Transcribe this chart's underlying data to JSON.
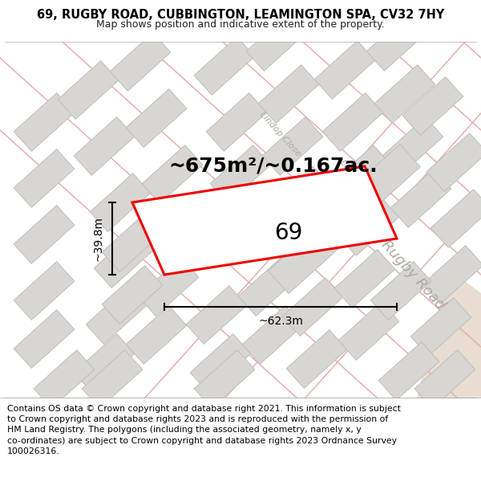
{
  "title": "69, RUGBY ROAD, CUBBINGTON, LEAMINGTON SPA, CV32 7HY",
  "subtitle": "Map shows position and indicative extent of the property.",
  "footer": "Contains OS data © Crown copyright and database right 2021. This information is subject\nto Crown copyright and database rights 2023 and is reproduced with the permission of\nHM Land Registry. The polygons (including the associated geometry, namely x, y\nco-ordinates) are subject to Crown copyright and database rights 2023 Ordnance Survey\n100026316.",
  "area_label": "~675m²/~0.167ac.",
  "width_label": "~62.3m",
  "height_label": "~39.8m",
  "plot_number": "69",
  "bg_color": "#f2f0ee",
  "block_color": "#d8d6d3",
  "block_edge_color": "#c0bebb",
  "road_line_color": "#e8aeae",
  "highlight_color": "#ee0000",
  "highlight_fill": "#ffffff",
  "title_fontsize": 10.5,
  "subtitle_fontsize": 9,
  "footer_fontsize": 7.8,
  "area_fontsize": 18,
  "plot_label_fontsize": 20,
  "road_label_color": "#b0a8a0",
  "dim_line_color": "#000000",
  "road_label_fontsize": 13
}
